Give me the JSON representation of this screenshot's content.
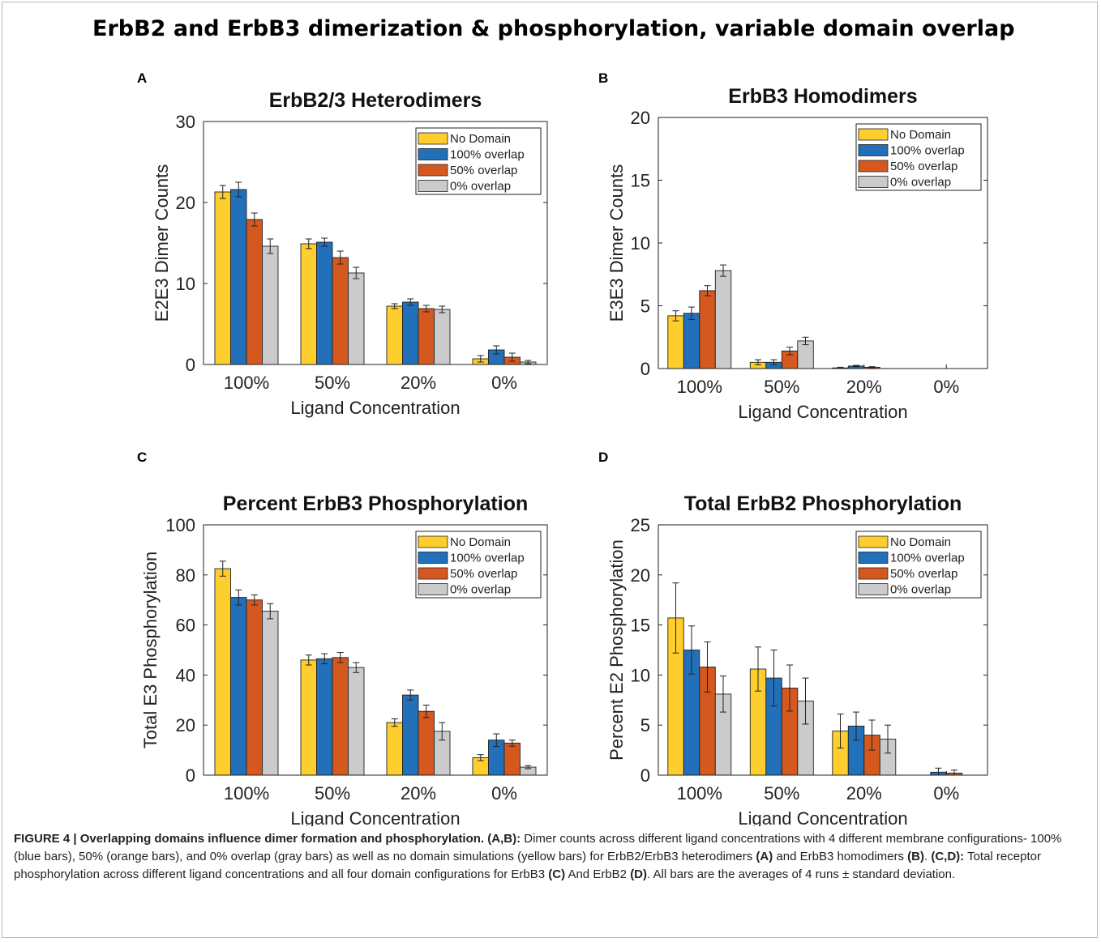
{
  "figure_title": "ErbB2 and ErbB3 dimerization & phosphorylation, variable domain overlap",
  "colors": {
    "No Domain": "#fdce2e",
    "100% overlap": "#2270b9",
    "50% overlap": "#d5581f",
    "0% overlap": "#cbcbcb"
  },
  "chart_data": [
    {
      "panel": "A",
      "type": "bar",
      "title": "ErbB2/3 Heterodimers",
      "xlabel": "Ligand Concentration",
      "ylabel": "E2E3 Dimer Counts",
      "ylim": [
        0,
        30
      ],
      "yticks": [
        0,
        10,
        20,
        30
      ],
      "categories": [
        "100%",
        "50%",
        "20%",
        "0%"
      ],
      "legend_position": "top-right",
      "series": [
        {
          "name": "No Domain",
          "values": [
            21.3,
            14.9,
            7.2,
            0.7
          ],
          "errors": [
            0.8,
            0.6,
            0.3,
            0.4
          ]
        },
        {
          "name": "100% overlap",
          "values": [
            21.6,
            15.1,
            7.7,
            1.8
          ],
          "errors": [
            0.9,
            0.5,
            0.4,
            0.5
          ]
        },
        {
          "name": "50% overlap",
          "values": [
            17.9,
            13.2,
            6.9,
            0.9
          ],
          "errors": [
            0.8,
            0.8,
            0.4,
            0.5
          ]
        },
        {
          "name": "0% overlap",
          "values": [
            14.6,
            11.3,
            6.8,
            0.3
          ],
          "errors": [
            0.9,
            0.7,
            0.4,
            0.2
          ]
        }
      ]
    },
    {
      "panel": "B",
      "type": "bar",
      "title": "ErbB3 Homodimers",
      "xlabel": "Ligand Concentration",
      "ylabel": "E3E3 Dimer Counts",
      "ylim": [
        0,
        20
      ],
      "yticks": [
        0,
        5,
        10,
        15,
        20
      ],
      "categories": [
        "100%",
        "50%",
        "20%",
        "0%"
      ],
      "legend_position": "top-right",
      "series": [
        {
          "name": "No Domain",
          "values": [
            4.2,
            0.5,
            0.05,
            0
          ],
          "errors": [
            0.4,
            0.2,
            0.05,
            0
          ]
        },
        {
          "name": "100% overlap",
          "values": [
            4.4,
            0.5,
            0.2,
            0
          ],
          "errors": [
            0.5,
            0.2,
            0.05,
            0
          ]
        },
        {
          "name": "50% overlap",
          "values": [
            6.2,
            1.4,
            0.1,
            0
          ],
          "errors": [
            0.4,
            0.3,
            0.05,
            0
          ]
        },
        {
          "name": "0% overlap",
          "values": [
            7.8,
            2.2,
            0,
            0
          ],
          "errors": [
            0.45,
            0.3,
            0,
            0
          ]
        }
      ]
    },
    {
      "panel": "C",
      "type": "bar",
      "title": "Percent ErbB3 Phosphorylation",
      "xlabel": "Ligand Concentration",
      "ylabel": "Total E3 Phosphorylation",
      "ylim": [
        0,
        100
      ],
      "yticks": [
        0,
        20,
        40,
        60,
        80,
        100
      ],
      "categories": [
        "100%",
        "50%",
        "20%",
        "0%"
      ],
      "legend_position": "top-right",
      "series": [
        {
          "name": "No Domain",
          "values": [
            82.5,
            46,
            21,
            7
          ],
          "errors": [
            3,
            2,
            1.5,
            1.2
          ]
        },
        {
          "name": "100% overlap",
          "values": [
            71,
            46.5,
            32,
            14
          ],
          "errors": [
            3,
            2,
            2,
            2.5
          ]
        },
        {
          "name": "50% overlap",
          "values": [
            70,
            47,
            25.5,
            12.8
          ],
          "errors": [
            2,
            2,
            2.5,
            1.2
          ]
        },
        {
          "name": "0% overlap",
          "values": [
            65.5,
            43,
            17.5,
            3.2
          ],
          "errors": [
            3,
            2,
            3.5,
            0.6
          ]
        }
      ]
    },
    {
      "panel": "D",
      "type": "bar",
      "title": "Total ErbB2 Phosphorylation",
      "xlabel": "Ligand Concentration",
      "ylabel": "Percent E2 Phosphorylation",
      "ylim": [
        0,
        25
      ],
      "yticks": [
        0,
        5,
        10,
        15,
        20,
        25
      ],
      "categories": [
        "100%",
        "50%",
        "20%",
        "0%"
      ],
      "legend_position": "top-right",
      "series": [
        {
          "name": "No Domain",
          "values": [
            15.7,
            10.6,
            4.4,
            0
          ],
          "errors": [
            3.5,
            2.2,
            1.7,
            0
          ]
        },
        {
          "name": "100% overlap",
          "values": [
            12.5,
            9.7,
            4.9,
            0.3
          ],
          "errors": [
            2.4,
            2.8,
            1.4,
            0.4
          ]
        },
        {
          "name": "50% overlap",
          "values": [
            10.8,
            8.7,
            4.0,
            0.2
          ],
          "errors": [
            2.5,
            2.3,
            1.5,
            0.3
          ]
        },
        {
          "name": "0% overlap",
          "values": [
            8.1,
            7.4,
            3.6,
            0
          ],
          "errors": [
            1.8,
            2.3,
            1.4,
            0
          ]
        }
      ]
    }
  ],
  "caption": {
    "lead": "FIGURE 4 | Overlapping domains influence dimer formation and phosphorylation.",
    "p1_bold": "(A,B):",
    "p1_text": " Dimer counts across different ligand concentrations with 4 different membrane configurations- 100% (blue bars), 50% (orange bars), and 0% overlap (gray bars) as well as no domain simulations (yellow bars) for ErbB2/ErbB3 heterodimers ",
    "ref_a": "(A)",
    "mid1": " and ErbB3 homodimers ",
    "ref_b": "(B)",
    "mid2": ". ",
    "p2_bold": "(C,D):",
    "p2_text": " Total receptor phosphorylation across different ligand concentrations and all four domain configurations for ErbB3 ",
    "ref_c": "(C)",
    "mid3": " And ErbB2 ",
    "ref_d": "(D)",
    "end": ". All bars are the averages of 4 runs ± standard deviation."
  }
}
